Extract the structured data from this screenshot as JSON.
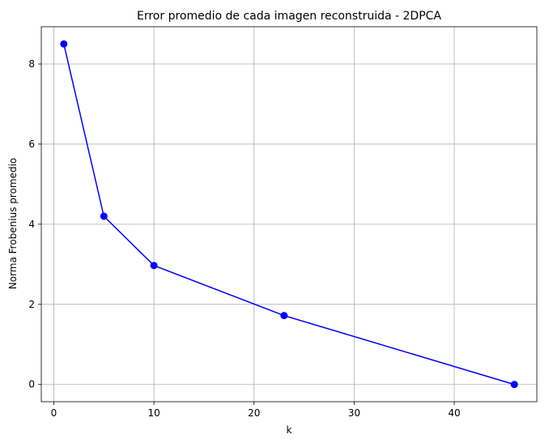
{
  "chart_data": {
    "type": "line",
    "title": "Error promedio de cada imagen reconstruida - 2DPCA",
    "xlabel": "k",
    "ylabel": "Norma Frobenius promedio",
    "xlim": [
      -1.25,
      48.25
    ],
    "ylim": [
      -0.43,
      8.93
    ],
    "xticks": [
      0,
      10,
      20,
      30,
      40
    ],
    "yticks": [
      0,
      2,
      4,
      6,
      8
    ],
    "xtick_labels": [
      "0",
      "10",
      "20",
      "30",
      "40"
    ],
    "ytick_labels": [
      "0",
      "2",
      "4",
      "6",
      "8"
    ],
    "grid": true,
    "series": [
      {
        "color": "#0000ff",
        "marker": "circle",
        "x": [
          1,
          5,
          10,
          23,
          46
        ],
        "y": [
          8.5,
          4.2,
          2.97,
          1.72,
          0.0
        ]
      }
    ]
  }
}
